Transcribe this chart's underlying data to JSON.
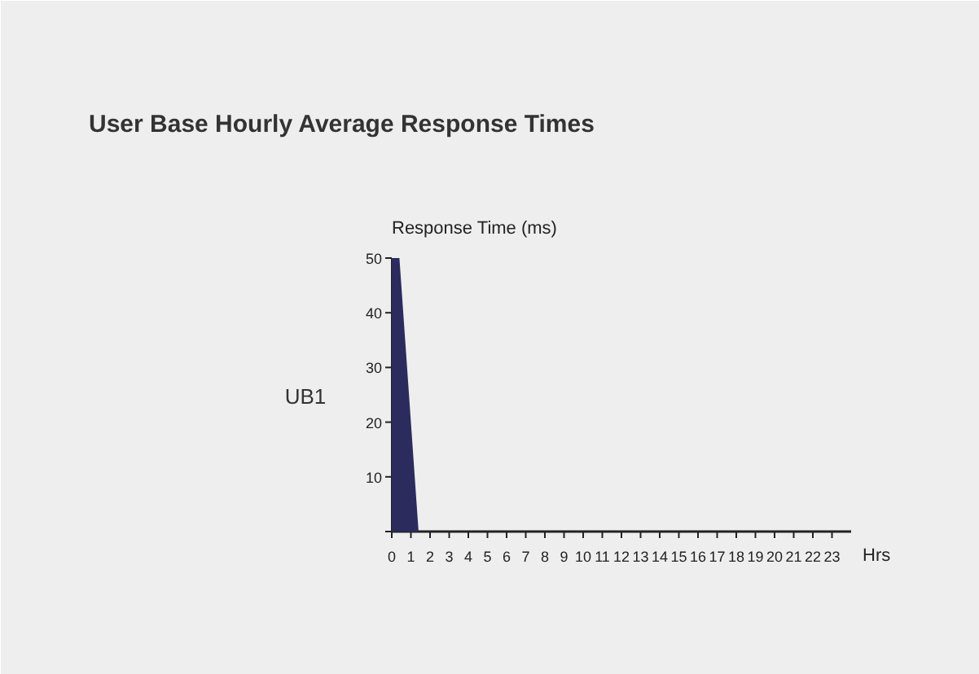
{
  "chart_data": {
    "type": "area",
    "title": "User Base Hourly Average Response Times",
    "ylabel": "UB1",
    "annotations": [
      "Response Time (ms)"
    ],
    "xlabel": "Hrs",
    "series": [
      {
        "color": "#2b2b5e",
        "x": [
          0,
          0.4,
          1.4,
          23
        ],
        "values": [
          50,
          50,
          0,
          0
        ]
      }
    ],
    "xlim": [
      0,
      24
    ],
    "xticks": [
      0,
      1,
      2,
      3,
      4,
      5,
      6,
      7,
      8,
      9,
      10,
      11,
      12,
      13,
      14,
      15,
      16,
      17,
      18,
      19,
      20,
      21,
      22,
      23
    ],
    "ylim": [
      0,
      50
    ],
    "yticks": [
      {
        "value": 0,
        "label": null
      },
      10,
      20,
      30,
      40,
      50
    ],
    "grid": false
  }
}
